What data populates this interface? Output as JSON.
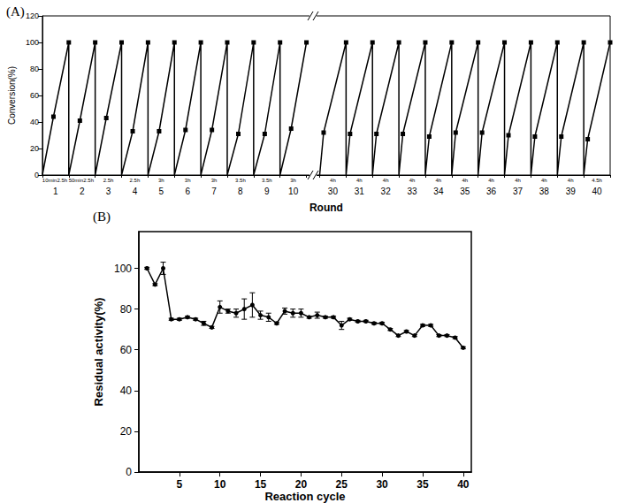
{
  "chart_data": [
    {
      "type": "line",
      "title": "(A)",
      "x_label": "Round",
      "y_label": "Conversion(%)",
      "categories": [
        "1",
        "2",
        "3",
        "4",
        "5",
        "6",
        "7",
        "8",
        "9",
        "10",
        "30",
        "31",
        "32",
        "33",
        "34",
        "35",
        "36",
        "37",
        "38",
        "39",
        "40"
      ],
      "times": [
        [
          "10min",
          "2.5h"
        ],
        [
          "50min",
          "2.5h"
        ],
        [
          "2.5h"
        ],
        [
          "2.5h"
        ],
        [
          "3h"
        ],
        [
          "3h"
        ],
        [
          "3h"
        ],
        [
          "3.5h"
        ],
        [
          "3.5h"
        ],
        [
          "3h"
        ],
        [
          "4h"
        ],
        [
          "4h"
        ],
        [
          "4h"
        ],
        [
          "4h"
        ],
        [
          "4h"
        ],
        [
          "4h"
        ],
        [
          "4h"
        ],
        [
          "4h"
        ],
        [
          "4h"
        ],
        [
          "4h"
        ],
        [
          "4.5h"
        ]
      ],
      "values": [
        [
          0,
          44,
          100
        ],
        [
          0,
          41,
          100
        ],
        [
          0,
          43,
          100
        ],
        [
          0,
          33,
          100
        ],
        [
          0,
          33,
          100
        ],
        [
          0,
          34,
          100
        ],
        [
          0,
          34,
          100
        ],
        [
          0,
          31,
          100
        ],
        [
          0,
          31,
          100
        ],
        [
          0,
          35,
          100
        ],
        [
          0,
          32,
          100
        ],
        [
          0,
          31,
          100
        ],
        [
          0,
          31,
          100
        ],
        [
          0,
          31,
          100
        ],
        [
          0,
          29,
          100
        ],
        [
          0,
          32,
          100
        ],
        [
          0,
          32,
          100
        ],
        [
          0,
          30,
          100
        ],
        [
          0,
          29,
          100
        ],
        [
          0,
          29,
          100
        ],
        [
          0,
          27,
          100
        ]
      ],
      "ylim": [
        0,
        120
      ],
      "yticks": [
        0,
        20,
        40,
        60,
        80,
        100,
        120
      ],
      "color": "#000000",
      "marker": "square",
      "grid": false
    },
    {
      "type": "line",
      "title": "(B)",
      "x_label": "Reaction cycle",
      "y_label": "Residual activity(%)",
      "x": [
        1,
        2,
        3,
        4,
        5,
        6,
        7,
        8,
        9,
        10,
        11,
        12,
        13,
        14,
        15,
        16,
        17,
        18,
        19,
        20,
        21,
        22,
        23,
        24,
        25,
        26,
        27,
        28,
        29,
        30,
        31,
        32,
        33,
        34,
        35,
        36,
        37,
        38,
        39,
        40
      ],
      "values": [
        100,
        92,
        100,
        75,
        75,
        76,
        75,
        73,
        71,
        81,
        79,
        78,
        80,
        82,
        77,
        76,
        73,
        79,
        78,
        78,
        76,
        77,
        76,
        76,
        72,
        75,
        74,
        74,
        73,
        73,
        70,
        67,
        69,
        67,
        72,
        72,
        67,
        67,
        66,
        61
      ],
      "errors": [
        0.5,
        0.5,
        3,
        0.5,
        0.5,
        0.5,
        0.5,
        1,
        0.5,
        3,
        1,
        2,
        5,
        6,
        2,
        2,
        0.5,
        1.5,
        2,
        2,
        0.5,
        1.5,
        0.5,
        0.5,
        2,
        0.5,
        0.5,
        0.5,
        0.5,
        0.5,
        0.5,
        0.5,
        0.5,
        0.5,
        0.5,
        0.5,
        0.5,
        0.5,
        0.5,
        0.5
      ],
      "xlim": [
        0,
        41
      ],
      "xticks": [
        5,
        10,
        15,
        20,
        25,
        30,
        35,
        40
      ],
      "ylim": [
        0,
        118
      ],
      "yticks": [
        0,
        20,
        40,
        60,
        80,
        100
      ],
      "color": "#000000",
      "marker": "circle",
      "grid": false
    }
  ]
}
